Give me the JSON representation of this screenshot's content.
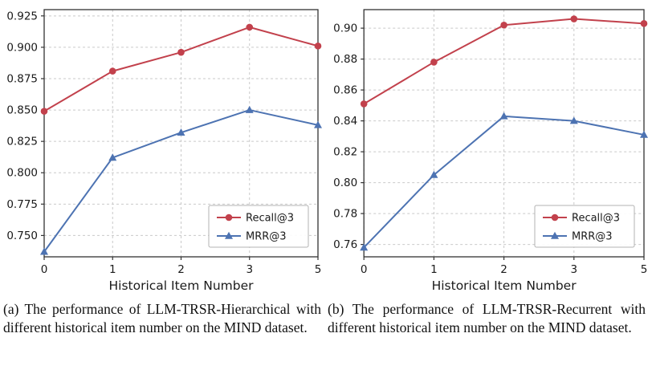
{
  "figure": {
    "captions": [
      "(a) The performance of LLM-TRSR-Hierarchical with different historical item number on the MIND dataset.",
      "(b) The performance of LLM-TRSR-Recurrent with different historical item number on the MIND dataset."
    ]
  },
  "style": {
    "grid_color": "#c9c9c9",
    "spine_color": "#333333",
    "text_color": "#1a1a1a",
    "legend_border_color": "#b3b3b3"
  },
  "chart_data": [
    {
      "type": "line",
      "title": "",
      "xlabel": "Historical Item Number",
      "ylabel": "",
      "categories": [
        "0",
        "1",
        "2",
        "3",
        "5"
      ],
      "yticks": [
        0.75,
        0.775,
        0.8,
        0.825,
        0.85,
        0.875,
        0.9,
        0.925
      ],
      "ytick_labels": [
        "0.750",
        "0.775",
        "0.800",
        "0.825",
        "0.850",
        "0.875",
        "0.900",
        "0.925"
      ],
      "ylim": [
        0.733,
        0.93
      ],
      "grid": true,
      "legend_position": "lower right",
      "series": [
        {
          "name": "Recall@3",
          "color": "#c2414c",
          "marker": "circle",
          "values": [
            0.849,
            0.881,
            0.896,
            0.916,
            0.901
          ]
        },
        {
          "name": "MRR@3",
          "color": "#4d73b2",
          "marker": "triangle",
          "values": [
            0.737,
            0.812,
            0.832,
            0.85,
            0.838
          ]
        }
      ]
    },
    {
      "type": "line",
      "title": "",
      "xlabel": "Historical Item Number",
      "ylabel": "",
      "categories": [
        "0",
        "1",
        "2",
        "3",
        "5"
      ],
      "yticks": [
        0.76,
        0.78,
        0.8,
        0.82,
        0.84,
        0.86,
        0.88,
        0.9
      ],
      "ytick_labels": [
        "0.76",
        "0.78",
        "0.80",
        "0.82",
        "0.84",
        "0.86",
        "0.88",
        "0.90"
      ],
      "ylim": [
        0.752,
        0.912
      ],
      "grid": true,
      "legend_position": "lower right",
      "series": [
        {
          "name": "Recall@3",
          "color": "#c2414c",
          "marker": "circle",
          "values": [
            0.851,
            0.878,
            0.902,
            0.906,
            0.903
          ]
        },
        {
          "name": "MRR@3",
          "color": "#4d73b2",
          "marker": "triangle",
          "values": [
            0.758,
            0.805,
            0.843,
            0.84,
            0.831
          ]
        }
      ]
    }
  ]
}
